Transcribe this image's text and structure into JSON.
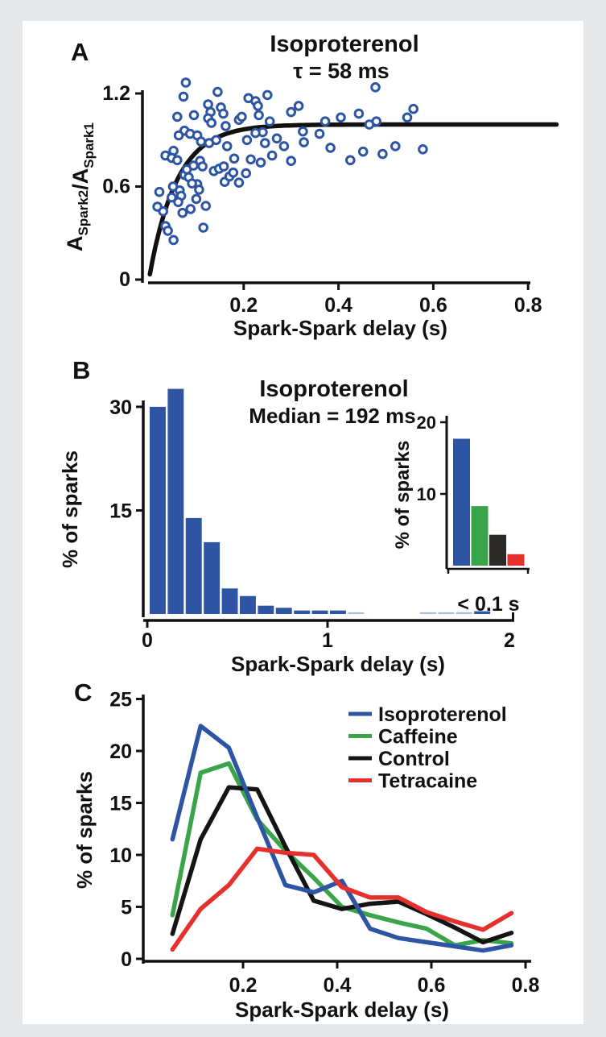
{
  "figure": {
    "background_color": "#e5e7e9",
    "panel_color": "#ffffff"
  },
  "colors": {
    "blue": "#2d55a4",
    "light_blue": "#a9bedd",
    "green": "#3aa44a",
    "black": "#141414",
    "bar_black": "#2b2a28",
    "red": "#e5302e",
    "axis": "#111111"
  },
  "chart_data": [
    {
      "id": "panelA",
      "panel_label": "A",
      "type": "scatter",
      "title": "Isoproterenol",
      "subtitle": "τ = 58 ms",
      "xlabel": "Spark-Spark delay (s)",
      "ylabel_rich": [
        {
          "t": "A"
        },
        {
          "t": "Spark2",
          "sub": true
        },
        {
          "t": "/A"
        },
        {
          "t": "Spark1",
          "sub": true
        }
      ],
      "xticks": [
        0.2,
        0.4,
        0.6,
        0.8
      ],
      "yticks": [
        0,
        0.6,
        1.2
      ],
      "xlim": [
        0,
        0.88
      ],
      "ylim": [
        0,
        1.28
      ],
      "fit": {
        "type": "exponential-recovery",
        "tau_s": 0.058,
        "plateau": 1.0,
        "x_end": 0.865
      },
      "points": [
        [
          0.078,
          1.27
        ],
        [
          0.073,
          1.18
        ],
        [
          0.145,
          1.21
        ],
        [
          0.25,
          1.19
        ],
        [
          0.21,
          1.17
        ],
        [
          0.225,
          1.15
        ],
        [
          0.125,
          1.13
        ],
        [
          0.13,
          1.08
        ],
        [
          0.152,
          1.11
        ],
        [
          0.157,
          1.07
        ],
        [
          0.06,
          1.05
        ],
        [
          0.095,
          1.06
        ],
        [
          0.23,
          1.12
        ],
        [
          0.232,
          1.06
        ],
        [
          0.125,
          1.04
        ],
        [
          0.132,
          1.01
        ],
        [
          0.162,
          0.99
        ],
        [
          0.19,
          1.03
        ],
        [
          0.196,
          1.05
        ],
        [
          0.075,
          0.96
        ],
        [
          0.063,
          0.93
        ],
        [
          0.087,
          0.94
        ],
        [
          0.102,
          0.93
        ],
        [
          0.11,
          0.89
        ],
        [
          0.127,
          0.88
        ],
        [
          0.142,
          0.9
        ],
        [
          0.165,
          0.86
        ],
        [
          0.18,
          0.78
        ],
        [
          0.207,
          0.9
        ],
        [
          0.052,
          0.83
        ],
        [
          0.035,
          0.8
        ],
        [
          0.048,
          0.785
        ],
        [
          0.06,
          0.77
        ],
        [
          0.075,
          0.675
        ],
        [
          0.08,
          0.71
        ],
        [
          0.094,
          0.735
        ],
        [
          0.108,
          0.765
        ],
        [
          0.113,
          0.73
        ],
        [
          0.137,
          0.7
        ],
        [
          0.148,
          0.715
        ],
        [
          0.158,
          0.73
        ],
        [
          0.102,
          0.615
        ],
        [
          0.084,
          0.66
        ],
        [
          0.065,
          0.575
        ],
        [
          0.068,
          0.54
        ],
        [
          0.062,
          0.5
        ],
        [
          0.048,
          0.53
        ],
        [
          0.022,
          0.565
        ],
        [
          0.018,
          0.47
        ],
        [
          0.03,
          0.44
        ],
        [
          0.035,
          0.345
        ],
        [
          0.04,
          0.315
        ],
        [
          0.052,
          0.255
        ],
        [
          0.088,
          0.455
        ],
        [
          0.115,
          0.335
        ],
        [
          0.16,
          0.63
        ],
        [
          0.106,
          0.58
        ],
        [
          0.091,
          0.62
        ],
        [
          0.1,
          0.52
        ],
        [
          0.12,
          0.475
        ],
        [
          0.071,
          0.43
        ],
        [
          0.051,
          0.6
        ],
        [
          0.17,
          0.665
        ],
        [
          0.178,
          0.69
        ],
        [
          0.19,
          0.625
        ],
        [
          0.205,
          0.685
        ],
        [
          0.236,
          0.755
        ],
        [
          0.26,
          0.8
        ],
        [
          0.27,
          0.91
        ],
        [
          0.285,
          0.86
        ],
        [
          0.3,
          1.08
        ],
        [
          0.3,
          0.765
        ],
        [
          0.316,
          1.12
        ],
        [
          0.325,
          0.955
        ],
        [
          0.327,
          0.885
        ],
        [
          0.36,
          0.94
        ],
        [
          0.372,
          1.02
        ],
        [
          0.383,
          0.85
        ],
        [
          0.405,
          1.045
        ],
        [
          0.425,
          0.77
        ],
        [
          0.443,
          1.07
        ],
        [
          0.452,
          0.825
        ],
        [
          0.465,
          1.0
        ],
        [
          0.478,
          1.24
        ],
        [
          0.48,
          1.02
        ],
        [
          0.493,
          0.81
        ],
        [
          0.52,
          0.86
        ],
        [
          0.545,
          1.045
        ],
        [
          0.558,
          1.1
        ],
        [
          0.578,
          0.84
        ],
        [
          0.24,
          0.95
        ],
        [
          0.255,
          1.02
        ],
        [
          0.245,
          0.88
        ],
        [
          0.215,
          0.775
        ],
        [
          0.225,
          0.945
        ]
      ]
    },
    {
      "id": "panelB",
      "panel_label": "B",
      "type": "bar",
      "title": "Isoproterenol",
      "subtitle": "Median = 192 ms",
      "xlabel": "Spark-Spark delay (s)",
      "ylabel": "% of sparks",
      "xticks": [
        0,
        1,
        2
      ],
      "yticks": [
        15,
        30
      ],
      "xlim": [
        0,
        2
      ],
      "ylim": [
        0,
        33
      ],
      "bin_width_s": 0.1,
      "bars": [
        {
          "start": 0.0,
          "pct": 30.0,
          "shade": "dark"
        },
        {
          "start": 0.1,
          "pct": 32.6,
          "shade": "dark"
        },
        {
          "start": 0.2,
          "pct": 13.9,
          "shade": "dark"
        },
        {
          "start": 0.3,
          "pct": 10.4,
          "shade": "dark"
        },
        {
          "start": 0.4,
          "pct": 3.7,
          "shade": "dark"
        },
        {
          "start": 0.5,
          "pct": 2.6,
          "shade": "dark"
        },
        {
          "start": 0.6,
          "pct": 1.2,
          "shade": "dark"
        },
        {
          "start": 0.7,
          "pct": 0.9,
          "shade": "dark"
        },
        {
          "start": 0.8,
          "pct": 0.5,
          "shade": "dark"
        },
        {
          "start": 0.9,
          "pct": 0.5,
          "shade": "dark"
        },
        {
          "start": 1.0,
          "pct": 0.5,
          "shade": "dark"
        },
        {
          "start": 1.1,
          "pct": 0.25,
          "shade": "light"
        },
        {
          "start": 1.5,
          "pct": 0.25,
          "shade": "light"
        },
        {
          "start": 1.6,
          "pct": 0.25,
          "shade": "light"
        },
        {
          "start": 1.7,
          "pct": 0.25,
          "shade": "light"
        },
        {
          "start": 1.8,
          "pct": 0.4,
          "shade": "dark"
        }
      ]
    },
    {
      "id": "panelB_inset",
      "type": "bar",
      "xlabel": "< 0.1 s",
      "ylabel": "% of sparks",
      "yticks": [
        10,
        20
      ],
      "ylim": [
        0,
        21
      ],
      "bars": [
        {
          "label": "Isoproterenol",
          "pct": 17.7,
          "color": "blue"
        },
        {
          "label": "Caffeine",
          "pct": 8.3,
          "color": "green"
        },
        {
          "label": "Control",
          "pct": 4.3,
          "color": "bar_black"
        },
        {
          "label": "Tetracaine",
          "pct": 1.6,
          "color": "red"
        }
      ]
    },
    {
      "id": "panelC",
      "panel_label": "C",
      "type": "line",
      "xlabel": "Spark-Spark delay (s)",
      "ylabel": "% of sparks",
      "xticks": [
        0.2,
        0.4,
        0.6,
        0.8
      ],
      "yticks": [
        0,
        5,
        10,
        15,
        20,
        25
      ],
      "xlim": [
        0,
        0.81
      ],
      "ylim": [
        0,
        25
      ],
      "x": [
        0.05,
        0.11,
        0.17,
        0.23,
        0.29,
        0.35,
        0.41,
        0.47,
        0.53,
        0.59,
        0.65,
        0.71,
        0.77
      ],
      "series": [
        {
          "name": "Isoproterenol",
          "color": "blue",
          "values": [
            11.5,
            22.4,
            20.3,
            13.6,
            7.1,
            6.4,
            7.5,
            2.9,
            2.0,
            1.6,
            1.2,
            0.8,
            1.3
          ]
        },
        {
          "name": "Caffeine",
          "color": "green",
          "values": [
            4.2,
            17.9,
            18.8,
            13.4,
            10.4,
            7.8,
            5.0,
            4.2,
            3.5,
            2.9,
            1.3,
            1.8,
            1.5
          ]
        },
        {
          "name": "Control",
          "color": "black",
          "values": [
            2.4,
            11.5,
            16.5,
            16.3,
            10.8,
            5.6,
            4.8,
            5.3,
            5.5,
            4.3,
            3.0,
            1.6,
            2.5
          ]
        },
        {
          "name": "Tetracaine",
          "color": "red",
          "values": [
            0.9,
            4.8,
            7.1,
            10.6,
            10.2,
            10.0,
            6.9,
            5.9,
            5.9,
            4.5,
            3.6,
            2.8,
            4.4
          ]
        }
      ],
      "legend_position": "top-right"
    }
  ]
}
